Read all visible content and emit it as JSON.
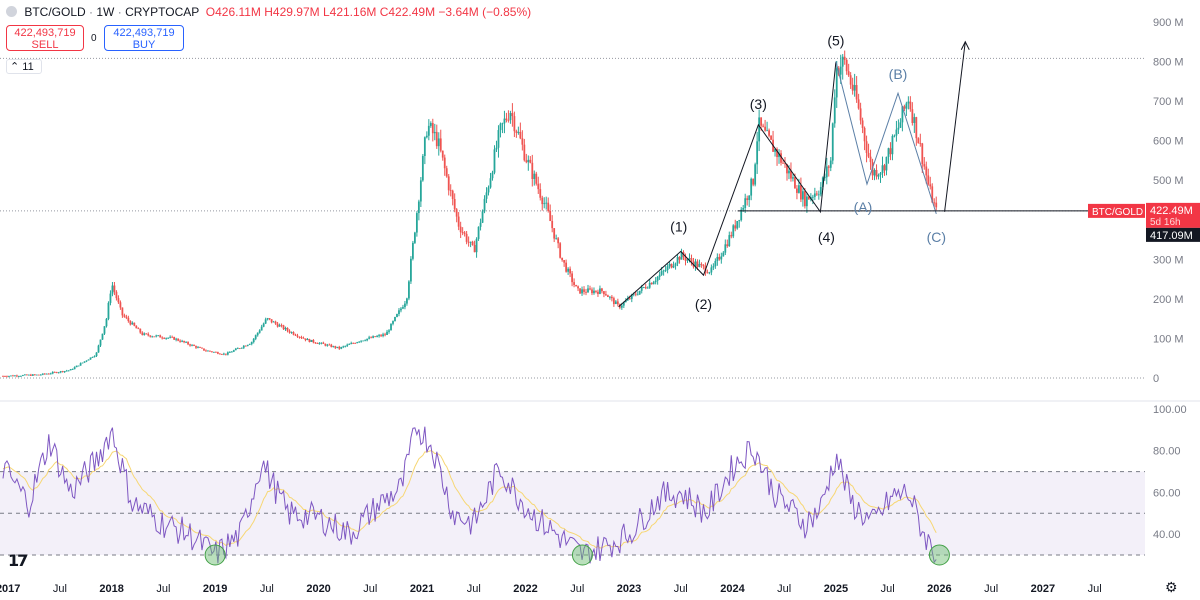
{
  "legend": {
    "symbol": "BTC/GOLD",
    "timeframe": "1W",
    "source": "CRYPTOCAP",
    "open": "O426.11M",
    "high": "H429.97M",
    "low": "L421.16M",
    "close": "C422.49M",
    "change": "−3.64M (−0.85%)"
  },
  "trade": {
    "sell_price": "422,493,719",
    "sell_label": "SELL",
    "spread": "0",
    "buy_price": "422,493,719",
    "buy_label": "BUY"
  },
  "indicator_count": "11",
  "colors": {
    "up": "#26a69a",
    "down": "#ef5350",
    "rsi": "#7e57c2",
    "rsi_ma": "#f7d774",
    "accent": "#f23645"
  },
  "price_axis": {
    "ticks": [
      "900 M",
      "800 M",
      "700 M",
      "600 M",
      "500 M",
      "400 M",
      "300 M",
      "200 M",
      "100 M",
      "0"
    ],
    "ylim": [
      0,
      900
    ],
    "unit": "M",
    "symbol_tag": "BTC/GOLD",
    "last_price": "422.49M",
    "countdown": "5d 16h",
    "crosshair_price": "417.09M"
  },
  "rsi_axis": {
    "ticks": [
      "100.00",
      "80.00",
      "60.00",
      "40.00"
    ],
    "overbought": 70,
    "middle": 50,
    "oversold": 30
  },
  "time_axis": {
    "labels": [
      "2017",
      "Jul",
      "2018",
      "Jul",
      "2019",
      "Jul",
      "2020",
      "Jul",
      "2021",
      "Jul",
      "2022",
      "Jul",
      "2023",
      "Jul",
      "2024",
      "Jul",
      "2025",
      "Jul",
      "2026",
      "Jul",
      "2027",
      "Jul"
    ]
  },
  "wave_labels": {
    "w1": "(1)",
    "w2": "(2)",
    "w3": "(3)",
    "w4": "(4)",
    "w5": "(5)",
    "wA": "(A)",
    "wB": "(B)",
    "wC": "(C)"
  },
  "chart_data": {
    "type": "candlestick",
    "xlim": [
      2016.95,
      2027.9
    ],
    "ylim": [
      0,
      900
    ],
    "price_anchors": [
      [
        2016.95,
        5
      ],
      [
        2017.3,
        8
      ],
      [
        2017.6,
        20
      ],
      [
        2017.85,
        60
      ],
      [
        2017.95,
        150
      ],
      [
        2018.0,
        240
      ],
      [
        2018.1,
        160
      ],
      [
        2018.3,
        110
      ],
      [
        2018.6,
        100
      ],
      [
        2018.9,
        70
      ],
      [
        2019.1,
        60
      ],
      [
        2019.35,
        90
      ],
      [
        2019.5,
        150
      ],
      [
        2019.7,
        120
      ],
      [
        2019.9,
        95
      ],
      [
        2020.2,
        75
      ],
      [
        2020.4,
        95
      ],
      [
        2020.65,
        110
      ],
      [
        2020.85,
        200
      ],
      [
        2020.95,
        420
      ],
      [
        2021.05,
        640
      ],
      [
        2021.15,
        600
      ],
      [
        2021.35,
        390
      ],
      [
        2021.5,
        320
      ],
      [
        2021.75,
        620
      ],
      [
        2021.85,
        680
      ],
      [
        2022.0,
        560
      ],
      [
        2022.2,
        430
      ],
      [
        2022.35,
        300
      ],
      [
        2022.5,
        220
      ],
      [
        2022.75,
        220
      ],
      [
        2022.9,
        180
      ],
      [
        2023.05,
        210
      ],
      [
        2023.3,
        260
      ],
      [
        2023.5,
        310
      ],
      [
        2023.7,
        280
      ],
      [
        2023.8,
        270
      ],
      [
        2024.0,
        370
      ],
      [
        2024.2,
        500
      ],
      [
        2024.25,
        640
      ],
      [
        2024.45,
        560
      ],
      [
        2024.7,
        450
      ],
      [
        2024.85,
        480
      ],
      [
        2024.95,
        550
      ],
      [
        2025.0,
        780
      ],
      [
        2025.08,
        800
      ],
      [
        2025.2,
        700
      ],
      [
        2025.35,
        520
      ],
      [
        2025.45,
        530
      ],
      [
        2025.6,
        630
      ],
      [
        2025.7,
        710
      ],
      [
        2025.8,
        600
      ],
      [
        2025.9,
        480
      ],
      [
        2025.97,
        420
      ]
    ],
    "wave_points": [
      {
        "label": "(1)",
        "x": 2023.5,
        "y": 320
      },
      {
        "label": "(2)",
        "x": 2023.72,
        "y": 260
      },
      {
        "label": "(3)",
        "x": 2024.25,
        "y": 640
      },
      {
        "label": "(4)",
        "x": 2024.85,
        "y": 420
      },
      {
        "label": "(5)",
        "x": 2025.0,
        "y": 800
      },
      {
        "label": "(A)",
        "x": 2025.3,
        "y": 490
      },
      {
        "label": "(B)",
        "x": 2025.6,
        "y": 720
      },
      {
        "label": "(C)",
        "x": 2025.97,
        "y": 415
      }
    ],
    "support_level": 422.49,
    "resistance_level": 808,
    "projection": {
      "from": [
        2026.05,
        420
      ],
      "to": [
        2026.25,
        850
      ]
    },
    "rsi_anchors": [
      [
        2016.95,
        72
      ],
      [
        2017.2,
        55
      ],
      [
        2017.4,
        85
      ],
      [
        2017.6,
        60
      ],
      [
        2017.85,
        75
      ],
      [
        2018.0,
        90
      ],
      [
        2018.2,
        55
      ],
      [
        2018.5,
        45
      ],
      [
        2018.75,
        40
      ],
      [
        2019.0,
        30
      ],
      [
        2019.25,
        40
      ],
      [
        2019.45,
        75
      ],
      [
        2019.7,
        50
      ],
      [
        2020.0,
        48
      ],
      [
        2020.3,
        40
      ],
      [
        2020.6,
        55
      ],
      [
        2020.8,
        62
      ],
      [
        2020.95,
        92
      ],
      [
        2021.1,
        82
      ],
      [
        2021.3,
        50
      ],
      [
        2021.5,
        45
      ],
      [
        2021.75,
        72
      ],
      [
        2021.9,
        60
      ],
      [
        2022.1,
        48
      ],
      [
        2022.3,
        40
      ],
      [
        2022.55,
        30
      ],
      [
        2022.8,
        35
      ],
      [
        2023.0,
        40
      ],
      [
        2023.3,
        58
      ],
      [
        2023.5,
        60
      ],
      [
        2023.75,
        50
      ],
      [
        2024.0,
        72
      ],
      [
        2024.2,
        82
      ],
      [
        2024.4,
        60
      ],
      [
        2024.7,
        45
      ],
      [
        2024.85,
        52
      ],
      [
        2025.0,
        78
      ],
      [
        2025.15,
        55
      ],
      [
        2025.35,
        45
      ],
      [
        2025.55,
        58
      ],
      [
        2025.7,
        60
      ],
      [
        2025.85,
        40
      ],
      [
        2025.97,
        30
      ]
    ],
    "oversold_marks": [
      {
        "x": 2019.0,
        "y": 30
      },
      {
        "x": 2022.55,
        "y": 30
      },
      {
        "x": 2026.0,
        "y": 30
      }
    ]
  }
}
